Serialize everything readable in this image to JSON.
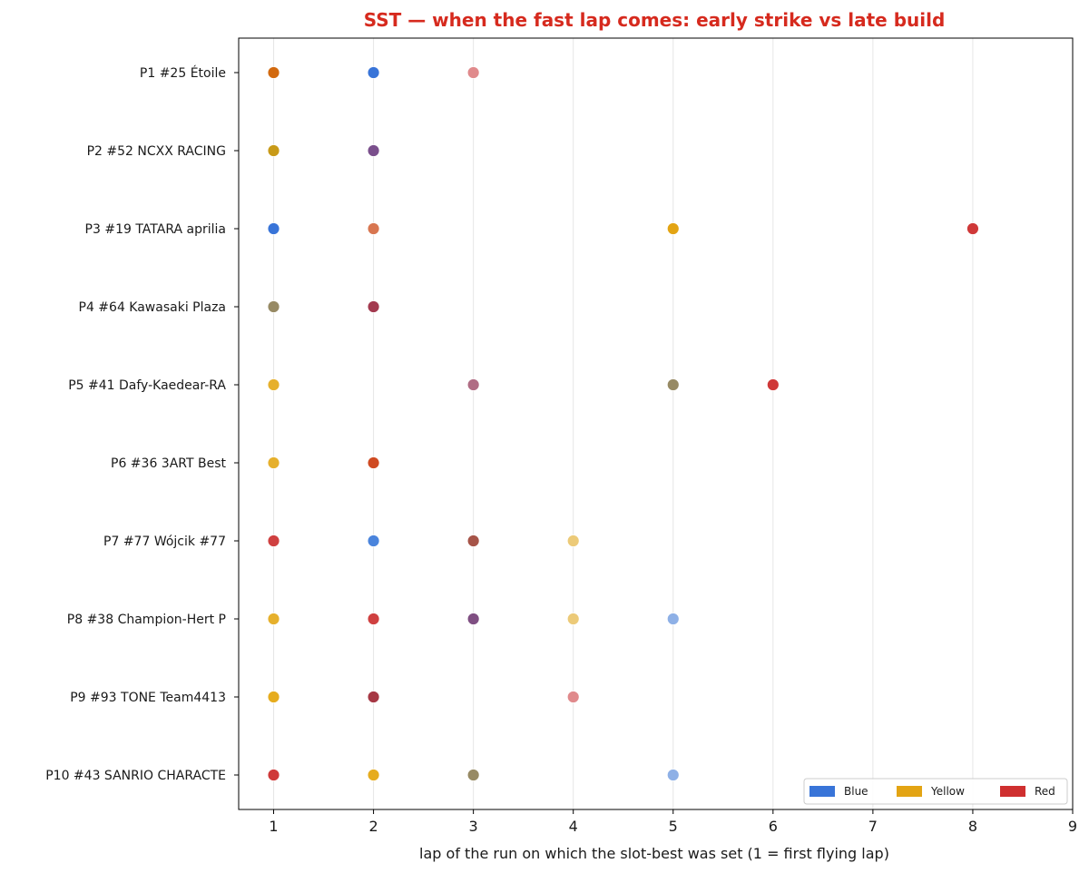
{
  "chart_data": {
    "type": "scatter",
    "title": "SST — when the fast lap comes: early strike vs late build",
    "xlabel": "lap of the run on which the slot-best was set (1 = first flying lap)",
    "ylabel": "",
    "xlim": [
      0.65,
      9
    ],
    "xticks": [
      1,
      2,
      3,
      4,
      5,
      6,
      7,
      8,
      9
    ],
    "grid": "vertical",
    "legend_placement": "lower-right",
    "categories": [
      "P1 #25 Étoile",
      "P2 #52 NCXX RACING",
      "P3 #19 TATARA aprilia",
      "P4 #64 Kawasaki Plaza",
      "P5 #41 Dafy-Kaedear-RA",
      "P6 #36 3ART Best",
      "P7 #77 Wójcik #77",
      "P8 #38 Champion-Hert P",
      "P9 #93 TONE Team4413",
      "P10 #43 SANRIO CHARACTE"
    ],
    "legend": [
      {
        "label": "Blue",
        "color": "#3874d8"
      },
      {
        "label": "Yellow",
        "color": "#e3a413"
      },
      {
        "label": "Red",
        "color": "#cf2f2f"
      }
    ],
    "points": [
      {
        "row": 0,
        "lap": 1,
        "color": "#d2690e"
      },
      {
        "row": 0,
        "lap": 2,
        "color": "#3874d8"
      },
      {
        "row": 0,
        "lap": 3,
        "color": "#e08a8c"
      },
      {
        "row": 1,
        "lap": 1,
        "color": "#c89a18"
      },
      {
        "row": 1,
        "lap": 2,
        "color": "#7a4f8c"
      },
      {
        "row": 2,
        "lap": 1,
        "color": "#3874d8"
      },
      {
        "row": 2,
        "lap": 2,
        "color": "#d87650"
      },
      {
        "row": 2,
        "lap": 5,
        "color": "#e3a413"
      },
      {
        "row": 2,
        "lap": 8,
        "color": "#cf3838"
      },
      {
        "row": 3,
        "lap": 1,
        "color": "#978a64"
      },
      {
        "row": 3,
        "lap": 2,
        "color": "#a33a4f"
      },
      {
        "row": 4,
        "lap": 1,
        "color": "#e6b02c"
      },
      {
        "row": 4,
        "lap": 3,
        "color": "#b06c84"
      },
      {
        "row": 4,
        "lap": 5,
        "color": "#978a64"
      },
      {
        "row": 4,
        "lap": 6,
        "color": "#cf3838"
      },
      {
        "row": 5,
        "lap": 1,
        "color": "#e6b02c"
      },
      {
        "row": 5,
        "lap": 2,
        "color": "#cf4a22"
      },
      {
        "row": 6,
        "lap": 1,
        "color": "#cf4040"
      },
      {
        "row": 6,
        "lap": 2,
        "color": "#4a84dc"
      },
      {
        "row": 6,
        "lap": 3,
        "color": "#a65448"
      },
      {
        "row": 6,
        "lap": 4,
        "color": "#ecca78"
      },
      {
        "row": 7,
        "lap": 1,
        "color": "#e6b02c"
      },
      {
        "row": 7,
        "lap": 2,
        "color": "#cf4040"
      },
      {
        "row": 7,
        "lap": 3,
        "color": "#7f4f82"
      },
      {
        "row": 7,
        "lap": 4,
        "color": "#ecca78"
      },
      {
        "row": 7,
        "lap": 5,
        "color": "#8eb0e6"
      },
      {
        "row": 8,
        "lap": 1,
        "color": "#e6ac1e"
      },
      {
        "row": 8,
        "lap": 2,
        "color": "#a63844"
      },
      {
        "row": 8,
        "lap": 4,
        "color": "#e08a8c"
      },
      {
        "row": 9,
        "lap": 1,
        "color": "#cf3838"
      },
      {
        "row": 9,
        "lap": 2,
        "color": "#e6ac1e"
      },
      {
        "row": 9,
        "lap": 3,
        "color": "#978a64"
      },
      {
        "row": 9,
        "lap": 5,
        "color": "#8eb0e6"
      }
    ]
  }
}
